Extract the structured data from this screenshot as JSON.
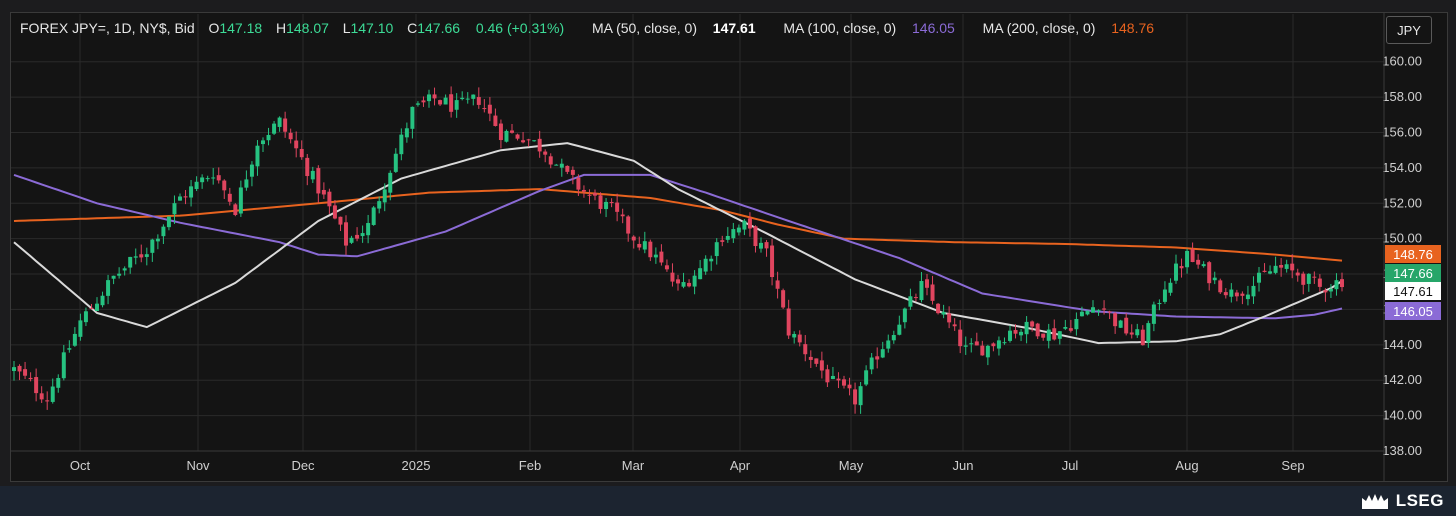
{
  "header": {
    "symbol": "FOREX JPY=, 1D, NY$, Bid",
    "open_label": "O",
    "open": "147.18",
    "high_label": "H",
    "high": "148.07",
    "low_label": "L",
    "low": "147.10",
    "close_label": "C",
    "close": "147.66",
    "change": "0.46 (+0.31%)",
    "ma50_label": "MA (50, close, 0)",
    "ma50_value": "147.61",
    "ma100_label": "MA (100, close, 0)",
    "ma100_value": "146.05",
    "ma200_label": "MA (200, close, 0)",
    "ma200_value": "148.76"
  },
  "currency": "JPY",
  "logo": "LSEG",
  "colors": {
    "up": "#26c281",
    "down": "#e0455f",
    "ma50": "#d9d9d9",
    "ma100": "#8b6bd6",
    "ma200": "#e8631f",
    "last_price_badge": "#26a669",
    "text_green": "#3ddc97"
  },
  "chart_data": {
    "type": "candlestick",
    "y_axis": {
      "min": 138,
      "max": 161,
      "ticks": [
        "160.00",
        "158.00",
        "156.00",
        "154.00",
        "152.00",
        "150.00",
        "148.00",
        "146.00",
        "144.00",
        "142.00",
        "140.00",
        "138.00"
      ]
    },
    "x_axis": {
      "ticks": [
        "Oct",
        "Nov",
        "Dec",
        "2025",
        "Feb",
        "Mar",
        "Apr",
        "May",
        "Jun",
        "Jul",
        "Aug",
        "Sep"
      ]
    },
    "price_badges": [
      {
        "label": "148.76",
        "value": 148.76,
        "series": "ma200"
      },
      {
        "label": "147.66",
        "value": 147.66,
        "series": "last"
      },
      {
        "label": "147.61",
        "value": 147.61,
        "series": "ma50"
      },
      {
        "label": "146.05",
        "value": 146.05,
        "series": "ma100"
      }
    ],
    "close_anchors": [
      [
        0,
        142.6
      ],
      [
        6,
        141.0
      ],
      [
        12,
        145.3
      ],
      [
        18,
        147.8
      ],
      [
        24,
        149.4
      ],
      [
        30,
        152.3
      ],
      [
        36,
        153.8
      ],
      [
        40,
        151.7
      ],
      [
        44,
        155.5
      ],
      [
        48,
        156.6
      ],
      [
        52,
        154.5
      ],
      [
        56,
        152.3
      ],
      [
        60,
        149.8
      ],
      [
        64,
        150.7
      ],
      [
        68,
        154.0
      ],
      [
        72,
        157.2
      ],
      [
        76,
        157.9
      ],
      [
        80,
        157.4
      ],
      [
        84,
        157.9
      ],
      [
        88,
        156.0
      ],
      [
        92,
        155.8
      ],
      [
        96,
        155.0
      ],
      [
        100,
        153.5
      ],
      [
        104,
        152.4
      ],
      [
        108,
        151.6
      ],
      [
        112,
        150.1
      ],
      [
        116,
        148.9
      ],
      [
        120,
        147.2
      ],
      [
        124,
        148.3
      ],
      [
        128,
        150.2
      ],
      [
        132,
        150.7
      ],
      [
        136,
        149.1
      ],
      [
        140,
        144.8
      ],
      [
        144,
        143.3
      ],
      [
        148,
        141.8
      ],
      [
        152,
        140.9
      ],
      [
        156,
        143.5
      ],
      [
        160,
        145.4
      ],
      [
        164,
        147.3
      ],
      [
        168,
        145.6
      ],
      [
        172,
        143.7
      ],
      [
        176,
        143.9
      ],
      [
        180,
        144.8
      ],
      [
        184,
        145.0
      ],
      [
        188,
        144.6
      ],
      [
        192,
        145.4
      ],
      [
        196,
        146.4
      ],
      [
        200,
        145.0
      ],
      [
        204,
        144.3
      ],
      [
        208,
        147.4
      ],
      [
        212,
        149.0
      ],
      [
        216,
        147.9
      ],
      [
        220,
        146.9
      ],
      [
        224,
        147.4
      ],
      [
        228,
        148.4
      ],
      [
        232,
        148.0
      ],
      [
        236,
        147.2
      ],
      [
        240,
        147.66
      ]
    ],
    "ma50": [
      [
        0,
        149.8
      ],
      [
        15,
        145.8
      ],
      [
        24,
        145.0
      ],
      [
        40,
        147.5
      ],
      [
        55,
        151.0
      ],
      [
        70,
        153.4
      ],
      [
        88,
        155.0
      ],
      [
        100,
        155.4
      ],
      [
        112,
        154.4
      ],
      [
        120,
        152.8
      ],
      [
        136,
        150.3
      ],
      [
        152,
        147.7
      ],
      [
        168,
        145.8
      ],
      [
        184,
        144.9
      ],
      [
        196,
        144.1
      ],
      [
        210,
        144.2
      ],
      [
        218,
        144.6
      ],
      [
        226,
        145.6
      ],
      [
        238,
        147.2
      ],
      [
        240,
        147.61
      ]
    ],
    "ma100": [
      [
        0,
        153.6
      ],
      [
        15,
        152.0
      ],
      [
        30,
        150.9
      ],
      [
        48,
        149.8
      ],
      [
        55,
        149.1
      ],
      [
        62,
        149.0
      ],
      [
        78,
        150.4
      ],
      [
        95,
        152.7
      ],
      [
        103,
        153.6
      ],
      [
        115,
        153.6
      ],
      [
        125,
        152.6
      ],
      [
        140,
        151.0
      ],
      [
        160,
        148.9
      ],
      [
        175,
        146.9
      ],
      [
        195,
        145.9
      ],
      [
        210,
        145.6
      ],
      [
        228,
        145.5
      ],
      [
        235,
        145.7
      ],
      [
        240,
        146.05
      ]
    ],
    "ma200": [
      [
        0,
        151.0
      ],
      [
        30,
        151.3
      ],
      [
        55,
        152.0
      ],
      [
        75,
        152.6
      ],
      [
        95,
        152.8
      ],
      [
        115,
        152.3
      ],
      [
        128,
        151.6
      ],
      [
        138,
        150.8
      ],
      [
        150,
        150.0
      ],
      [
        170,
        149.8
      ],
      [
        190,
        149.7
      ],
      [
        210,
        149.5
      ],
      [
        228,
        149.1
      ],
      [
        240,
        148.76
      ]
    ]
  }
}
